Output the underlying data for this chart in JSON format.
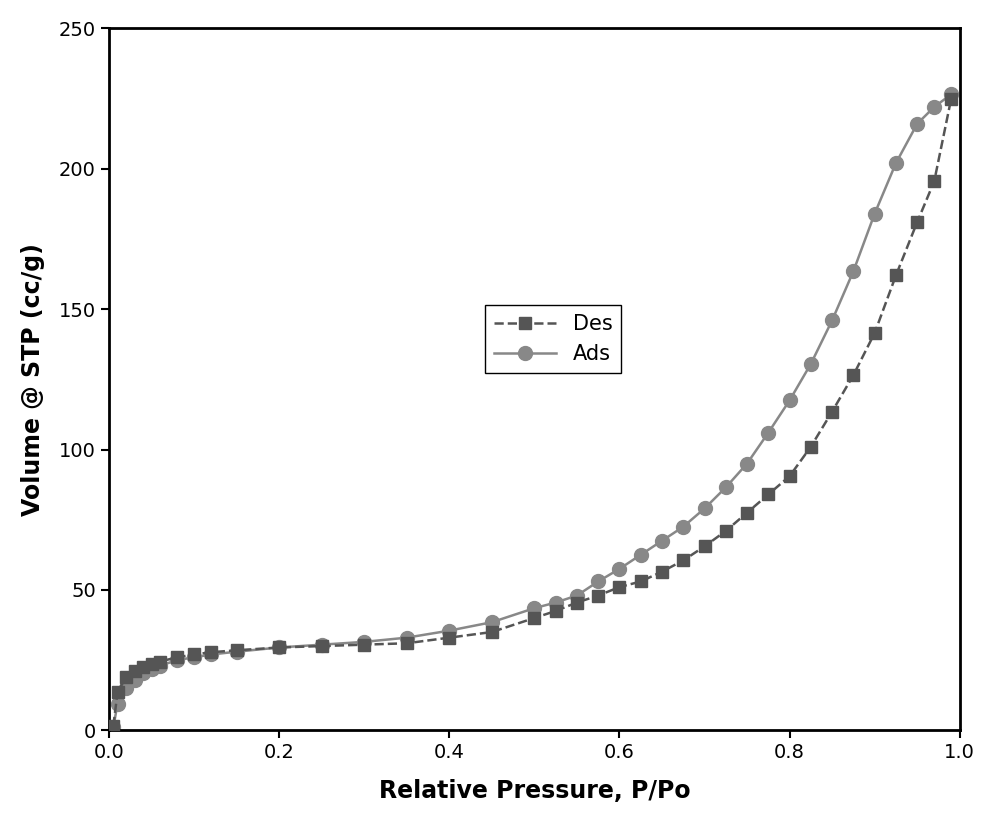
{
  "des_x": [
    0.005,
    0.01,
    0.02,
    0.03,
    0.04,
    0.05,
    0.06,
    0.08,
    0.1,
    0.12,
    0.15,
    0.2,
    0.25,
    0.3,
    0.35,
    0.4,
    0.45,
    0.5,
    0.525,
    0.55,
    0.575,
    0.6,
    0.625,
    0.65,
    0.675,
    0.7,
    0.725,
    0.75,
    0.775,
    0.8,
    0.825,
    0.85,
    0.875,
    0.9,
    0.925,
    0.95,
    0.97,
    0.99
  ],
  "des_y": [
    1.5,
    13.5,
    19.0,
    21.0,
    22.5,
    23.5,
    24.5,
    26.0,
    27.0,
    27.8,
    28.5,
    29.5,
    30.0,
    30.5,
    31.0,
    33.0,
    35.0,
    40.0,
    42.5,
    45.5,
    48.0,
    51.0,
    53.0,
    56.5,
    60.5,
    65.5,
    71.0,
    77.5,
    84.0,
    90.5,
    101.0,
    113.5,
    126.5,
    141.5,
    162.0,
    181.0,
    195.5,
    225.0
  ],
  "ads_x": [
    0.005,
    0.01,
    0.02,
    0.03,
    0.04,
    0.05,
    0.06,
    0.08,
    0.1,
    0.12,
    0.15,
    0.2,
    0.25,
    0.3,
    0.35,
    0.4,
    0.45,
    0.5,
    0.525,
    0.55,
    0.575,
    0.6,
    0.625,
    0.65,
    0.675,
    0.7,
    0.725,
    0.75,
    0.775,
    0.8,
    0.825,
    0.85,
    0.875,
    0.9,
    0.925,
    0.95,
    0.97,
    0.99
  ],
  "ads_y": [
    1.0,
    9.5,
    15.0,
    18.0,
    20.5,
    22.0,
    23.0,
    25.0,
    26.0,
    27.0,
    28.0,
    29.5,
    30.5,
    31.5,
    33.0,
    35.5,
    38.5,
    43.5,
    45.5,
    48.0,
    53.0,
    57.5,
    62.5,
    67.5,
    72.5,
    79.0,
    86.5,
    95.0,
    106.0,
    117.5,
    130.5,
    146.0,
    163.5,
    184.0,
    202.0,
    216.0,
    222.0,
    226.5
  ],
  "des_color": "#555555",
  "ads_color": "#888888",
  "des_label": "Des",
  "ads_label": "Ads",
  "xlabel": "Relative Pressure, P/Po",
  "ylabel": "Volume @ STP (cc/g)",
  "xlim": [
    0.0,
    1.0
  ],
  "ylim": [
    0,
    250
  ],
  "xticks": [
    0.0,
    0.2,
    0.4,
    0.6,
    0.8,
    1.0
  ],
  "yticks": [
    0,
    50,
    100,
    150,
    200,
    250
  ],
  "label_fontsize": 17,
  "tick_fontsize": 14,
  "legend_fontsize": 15,
  "background_color": "#ffffff",
  "line_width": 1.8,
  "marker_size_des": 8,
  "marker_size_ads": 10
}
